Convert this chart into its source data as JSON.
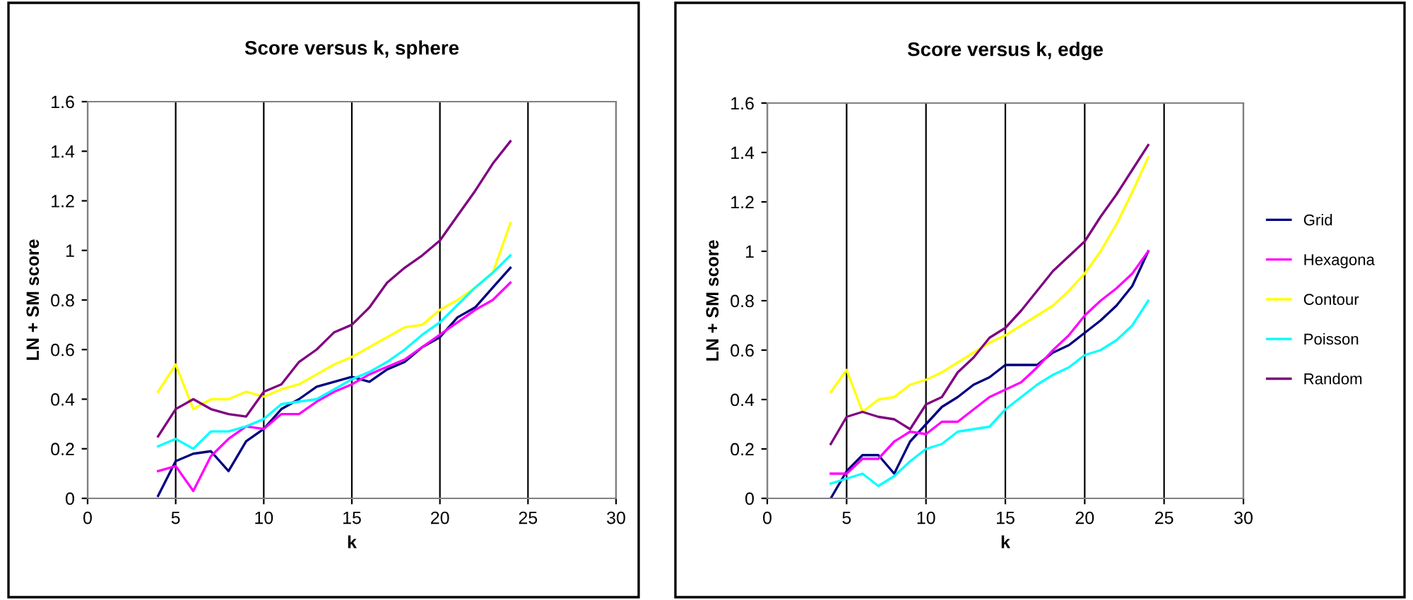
{
  "chart_data": [
    {
      "type": "line",
      "title": "Score versus k, sphere",
      "xlabel": "k",
      "ylabel": "LN + SM score",
      "xlim": [
        0,
        30
      ],
      "xticks": [
        0,
        5,
        10,
        15,
        20,
        25,
        30
      ],
      "ylim": [
        0,
        1.6
      ],
      "yticks": [
        0,
        0.2,
        0.4,
        0.6,
        0.8,
        1,
        1.2,
        1.4,
        1.6
      ],
      "grid": "x",
      "legend": false,
      "marker": "none",
      "line_style": "solid",
      "x": [
        4,
        5,
        6,
        7,
        8,
        9,
        10,
        11,
        12,
        13,
        14,
        15,
        16,
        17,
        18,
        19,
        20,
        21,
        22,
        23,
        24
      ],
      "series": [
        {
          "color": "#000080",
          "values": [
            0.01,
            0.15,
            0.18,
            0.19,
            0.11,
            0.23,
            0.28,
            0.36,
            0.4,
            0.45,
            0.47,
            0.49,
            0.47,
            0.52,
            0.55,
            0.61,
            0.65,
            0.73,
            0.77,
            0.85,
            0.93
          ]
        },
        {
          "color": "#ff00ff",
          "values": [
            0.11,
            0.13,
            0.03,
            0.17,
            0.24,
            0.29,
            0.28,
            0.34,
            0.34,
            0.39,
            0.43,
            0.46,
            0.5,
            0.53,
            0.56,
            0.61,
            0.66,
            0.71,
            0.76,
            0.8,
            0.87
          ]
        },
        {
          "color": "#ffff00",
          "values": [
            0.43,
            0.54,
            0.36,
            0.4,
            0.4,
            0.43,
            0.41,
            0.44,
            0.46,
            0.5,
            0.54,
            0.57,
            0.61,
            0.65,
            0.69,
            0.7,
            0.76,
            0.8,
            0.85,
            0.91,
            1.11
          ]
        },
        {
          "color": "#00ffff",
          "values": [
            0.21,
            0.24,
            0.2,
            0.27,
            0.27,
            0.29,
            0.32,
            0.38,
            0.39,
            0.4,
            0.44,
            0.48,
            0.51,
            0.55,
            0.6,
            0.66,
            0.71,
            0.78,
            0.85,
            0.91,
            0.98
          ]
        },
        {
          "color": "#800080",
          "values": [
            0.25,
            0.36,
            0.4,
            0.36,
            0.34,
            0.33,
            0.43,
            0.46,
            0.55,
            0.6,
            0.67,
            0.7,
            0.77,
            0.87,
            0.93,
            0.98,
            1.04,
            1.14,
            1.24,
            1.35,
            1.44
          ]
        }
      ]
    },
    {
      "type": "line",
      "title": "Score versus k, edge",
      "xlabel": "k",
      "ylabel": "LN + SM score",
      "xlim": [
        0,
        30
      ],
      "xticks": [
        0,
        5,
        10,
        15,
        20,
        25,
        30
      ],
      "ylim": [
        0,
        1.6
      ],
      "yticks": [
        0,
        0.2,
        0.4,
        0.6,
        0.8,
        1,
        1.2,
        1.4,
        1.6
      ],
      "grid": "x",
      "legend": "right",
      "marker": "none",
      "line_style": "solid",
      "x": [
        4,
        5,
        6,
        7,
        8,
        9,
        10,
        11,
        12,
        13,
        14,
        15,
        16,
        17,
        18,
        19,
        20,
        21,
        22,
        23,
        24
      ],
      "series": [
        {
          "name": "Grid",
          "color": "#000080",
          "values": [
            0,
            0.11,
            0.175,
            0.175,
            0.1,
            0.23,
            0.3,
            0.37,
            0.41,
            0.46,
            0.49,
            0.54,
            0.54,
            0.54,
            0.59,
            0.62,
            0.67,
            0.72,
            0.78,
            0.86,
            1.0
          ]
        },
        {
          "name": "Hexagona",
          "color": "#ff00ff",
          "values": [
            0.1,
            0.1,
            0.16,
            0.16,
            0.23,
            0.27,
            0.26,
            0.31,
            0.31,
            0.36,
            0.41,
            0.44,
            0.47,
            0.53,
            0.6,
            0.66,
            0.74,
            0.8,
            0.85,
            0.91,
            1.0
          ]
        },
        {
          "name": "Contour",
          "color": "#ffff00",
          "values": [
            0.43,
            0.52,
            0.35,
            0.4,
            0.41,
            0.46,
            0.48,
            0.51,
            0.55,
            0.59,
            0.63,
            0.66,
            0.7,
            0.74,
            0.78,
            0.84,
            0.91,
            1.0,
            1.11,
            1.24,
            1.38
          ]
        },
        {
          "name": "Poisson",
          "color": "#00ffff",
          "values": [
            0.06,
            0.08,
            0.1,
            0.05,
            0.09,
            0.15,
            0.2,
            0.22,
            0.27,
            0.28,
            0.29,
            0.36,
            0.41,
            0.46,
            0.5,
            0.53,
            0.58,
            0.6,
            0.64,
            0.7,
            0.8
          ]
        },
        {
          "name": "Random",
          "color": "#800080",
          "values": [
            0.22,
            0.33,
            0.35,
            0.33,
            0.32,
            0.28,
            0.38,
            0.41,
            0.51,
            0.57,
            0.65,
            0.69,
            0.76,
            0.84,
            0.92,
            0.98,
            1.04,
            1.14,
            1.23,
            1.33,
            1.43
          ]
        }
      ]
    }
  ]
}
